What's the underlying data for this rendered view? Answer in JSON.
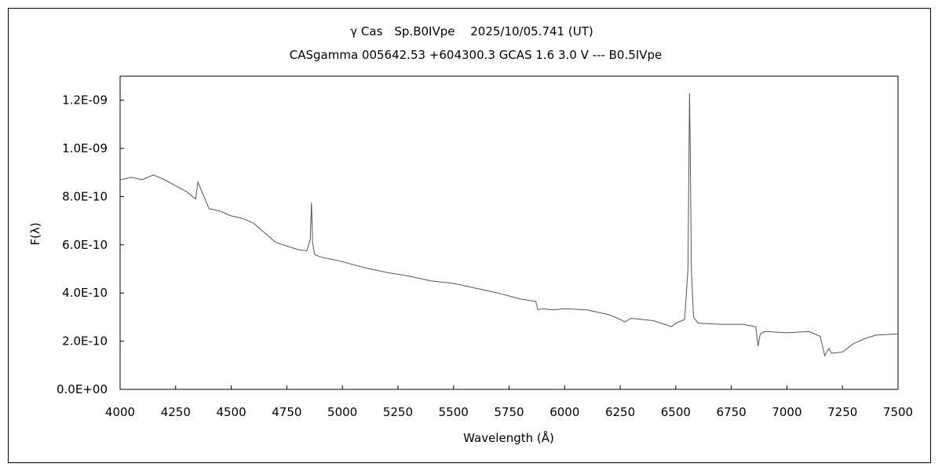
{
  "chart_data": {
    "type": "line",
    "title": "γ Cas　Sp.B0IVpe　 2025/10/05.741 (UT)",
    "subtitle": "CASgamma 005642.53 +604300.3 GCAS 1.6 3.0 V --- B0.5IVpe",
    "xlabel": "Wavelength (Å)",
    "ylabel": "F(λ)",
    "xlim": [
      4000,
      7500
    ],
    "ylim": [
      0,
      1.3e-09
    ],
    "xticks": [
      4000,
      4250,
      4500,
      4750,
      5000,
      5250,
      5500,
      5750,
      6000,
      6250,
      6500,
      6750,
      7000,
      7250,
      7500
    ],
    "xtick_labels": [
      "4000",
      "4250",
      "4500",
      "4750",
      "5000",
      "5250",
      "5500",
      "5750",
      "6000",
      "6250",
      "6500",
      "6750",
      "7000",
      "7250",
      "7500"
    ],
    "yticks": [
      0,
      2e-10,
      4e-10,
      6e-10,
      8e-10,
      1e-09,
      1.2e-09
    ],
    "ytick_labels": [
      "0.0E+00",
      "2.0E-10",
      "4.0E-10",
      "6.0E-10",
      "8.0E-10",
      "1.0E-09",
      "1.2E-09"
    ],
    "grid": false,
    "legend": "none",
    "series": [
      {
        "color": "#555555",
        "x": [
          4000,
          4050,
          4100,
          4150,
          4200,
          4250,
          4300,
          4340,
          4350,
          4400,
          4450,
          4500,
          4550,
          4600,
          4650,
          4700,
          4750,
          4800,
          4840,
          4855,
          4861,
          4866,
          4875,
          4900,
          4950,
          5000,
          5100,
          5200,
          5300,
          5400,
          5500,
          5600,
          5700,
          5800,
          5870,
          5880,
          5900,
          5950,
          6000,
          6100,
          6200,
          6250,
          6270,
          6300,
          6400,
          6450,
          6480,
          6500,
          6540,
          6555,
          6562,
          6565,
          6570,
          6580,
          6600,
          6700,
          6800,
          6860,
          6870,
          6880,
          6900,
          7000,
          7100,
          7150,
          7170,
          7190,
          7200,
          7250,
          7300,
          7350,
          7400,
          7500
        ],
        "y": [
          8.7e-10,
          8.8e-10,
          8.7e-10,
          8.9e-10,
          8.7e-10,
          8.45e-10,
          8.2e-10,
          7.9e-10,
          8.6e-10,
          7.5e-10,
          7.4e-10,
          7.2e-10,
          7.1e-10,
          6.9e-10,
          6.5e-10,
          6.1e-10,
          5.95e-10,
          5.8e-10,
          5.75e-10,
          6.2e-10,
          7.75e-10,
          6.1e-10,
          5.6e-10,
          5.5e-10,
          5.4e-10,
          5.3e-10,
          5.05e-10,
          4.85e-10,
          4.7e-10,
          4.5e-10,
          4.4e-10,
          4.2e-10,
          4e-10,
          3.75e-10,
          3.65e-10,
          3.3e-10,
          3.35e-10,
          3.3e-10,
          3.35e-10,
          3.3e-10,
          3.1e-10,
          2.9e-10,
          2.8e-10,
          2.95e-10,
          2.85e-10,
          2.7e-10,
          2.6e-10,
          2.75e-10,
          2.9e-10,
          5e-10,
          1.23e-09,
          1e-09,
          5e-10,
          3e-10,
          2.75e-10,
          2.7e-10,
          2.7e-10,
          2.6e-10,
          1.8e-10,
          2.3e-10,
          2.4e-10,
          2.35e-10,
          2.4e-10,
          2.2e-10,
          1.4e-10,
          1.7e-10,
          1.5e-10,
          1.55e-10,
          1.9e-10,
          2.1e-10,
          2.25e-10,
          2.3e-10
        ]
      }
    ]
  }
}
